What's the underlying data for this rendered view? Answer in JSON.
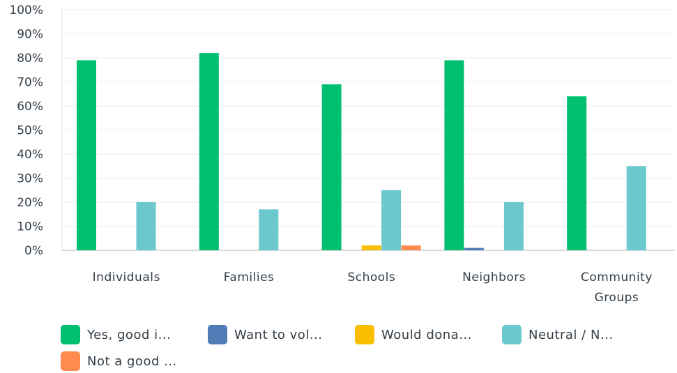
{
  "chart_data": {
    "type": "bar",
    "categories": [
      "Individuals",
      "Families",
      "Schools",
      "Neighbors",
      "Community Groups"
    ],
    "category_lines": [
      [
        "Individuals"
      ],
      [
        "Families"
      ],
      [
        "Schools"
      ],
      [
        "Neighbors"
      ],
      [
        "Community",
        "Groups"
      ]
    ],
    "series": [
      {
        "name": "Yes, good i...",
        "color": "#00bf6f",
        "values": [
          79,
          82,
          69,
          79,
          64
        ]
      },
      {
        "name": "Want to vol...",
        "color": "#507cb6",
        "values": [
          0,
          0,
          0,
          1,
          0
        ]
      },
      {
        "name": "Would dona...",
        "color": "#f9be00",
        "values": [
          0,
          0,
          2,
          0,
          0
        ]
      },
      {
        "name": "Neutral / N...",
        "color": "#6bc8cd",
        "values": [
          20,
          17,
          25,
          20,
          35
        ]
      },
      {
        "name": "Not a good ...",
        "color": "#ff8b4f",
        "values": [
          0,
          0,
          2,
          0,
          0
        ]
      }
    ],
    "ylim": [
      0,
      100
    ],
    "yticks": [
      0,
      10,
      20,
      30,
      40,
      50,
      60,
      70,
      80,
      90,
      100
    ],
    "ytick_labels": [
      "0%",
      "10%",
      "20%",
      "30%",
      "40%",
      "50%",
      "60%",
      "70%",
      "80%",
      "90%",
      "100%"
    ],
    "grid": true,
    "legend_position": "bottom"
  }
}
